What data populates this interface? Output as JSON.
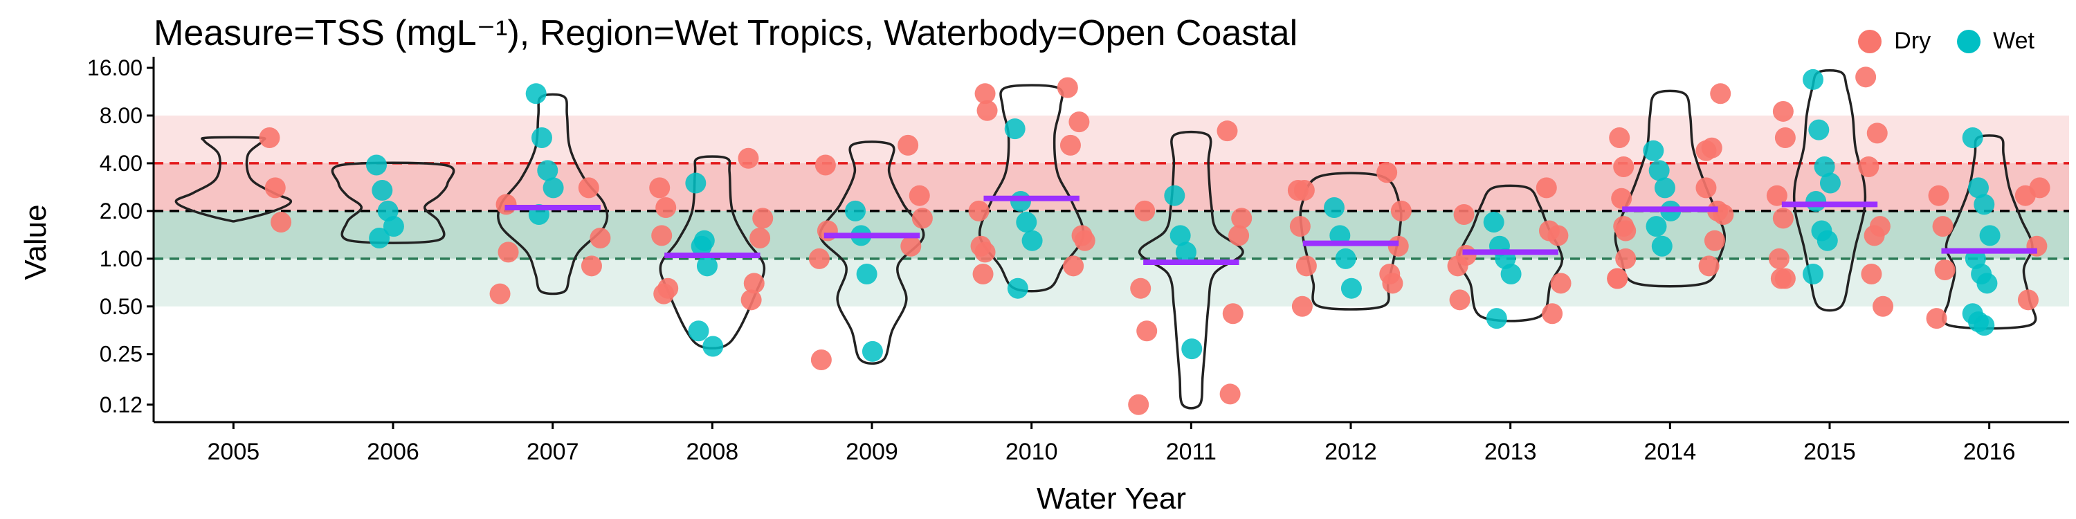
{
  "chart_data": {
    "type": "violin",
    "title": "Measure=TSS (mgL⁻¹), Region=Wet Tropics, Waterbody=Open Coastal",
    "xlabel": "Water Year",
    "ylabel": "Value",
    "y_scale": "log",
    "ylim": [
      0.095,
      17
    ],
    "y_ticks": [
      0.12,
      0.25,
      0.5,
      1.0,
      2.0,
      4.0,
      8.0,
      16.0
    ],
    "y_tick_labels": [
      "0.12",
      "0.25",
      "0.50",
      "1.00",
      "2.00",
      "4.00",
      "8.00",
      "16.00"
    ],
    "categories": [
      "2005",
      "2006",
      "2007",
      "2008",
      "2009",
      "2010",
      "2011",
      "2012",
      "2013",
      "2014",
      "2015",
      "2016"
    ],
    "bands": [
      {
        "from": 4.0,
        "to": 8.0,
        "color": "#fbe3e3"
      },
      {
        "from": 2.0,
        "to": 4.0,
        "color": "#f7c4c4"
      },
      {
        "from": 1.0,
        "to": 2.0,
        "color": "#bcdccf"
      },
      {
        "from": 0.5,
        "to": 1.0,
        "color": "#e3f1ec"
      }
    ],
    "reference_lines": [
      {
        "value": 4.0,
        "color": "#e41a1c",
        "style": "dashed"
      },
      {
        "value": 2.0,
        "color": "#000000",
        "style": "dashed"
      },
      {
        "value": 1.0,
        "color": "#2a7a55",
        "style": "dashed"
      }
    ],
    "legend": {
      "position": "top-right",
      "items": [
        {
          "label": "Dry",
          "color": "#f8766d"
        },
        {
          "label": "Wet",
          "color": "#00bfc4"
        }
      ]
    },
    "series": [
      {
        "year": "2005",
        "dry": [
          5.8,
          2.8,
          1.7
        ],
        "wet": [],
        "violin": [
          [
            1.75,
            0.1
          ],
          [
            2.0,
            0.7
          ],
          [
            2.3,
            1.0
          ],
          [
            2.6,
            0.7
          ],
          [
            3.2,
            0.3
          ],
          [
            4.5,
            0.25
          ],
          [
            5.5,
            0.5
          ],
          [
            5.8,
            0.45
          ]
        ],
        "median": null
      },
      {
        "year": "2006",
        "dry": [],
        "wet": [
          3.9,
          2.7,
          2.0,
          1.6,
          1.35
        ],
        "violin": [
          [
            1.3,
            0.75
          ],
          [
            1.7,
            0.8
          ],
          [
            2.1,
            0.55
          ],
          [
            2.5,
            0.8
          ],
          [
            3.0,
            0.95
          ],
          [
            3.9,
            0.9
          ]
        ],
        "median": null
      },
      {
        "year": "2007",
        "dry": [
          2.8,
          2.2,
          1.35,
          1.1,
          0.9,
          0.6
        ],
        "wet": [
          11.0,
          5.8,
          3.6,
          2.8,
          1.9
        ],
        "violin": [
          [
            0.62,
            0.2
          ],
          [
            0.8,
            0.3
          ],
          [
            1.1,
            0.45
          ],
          [
            1.6,
            0.9
          ],
          [
            2.2,
            0.9
          ],
          [
            3.2,
            0.55
          ],
          [
            5.0,
            0.3
          ],
          [
            8.0,
            0.25
          ],
          [
            10.5,
            0.2
          ]
        ],
        "median": 2.1
      },
      {
        "year": "2008",
        "dry": [
          4.3,
          2.1,
          1.35,
          0.65,
          0.55,
          2.8,
          1.8,
          1.4,
          0.7,
          0.6
        ],
        "wet": [
          3.0,
          1.2,
          0.9,
          0.28,
          0.35,
          1.3
        ],
        "violin": [
          [
            0.28,
            0.2
          ],
          [
            0.35,
            0.45
          ],
          [
            0.6,
            0.75
          ],
          [
            0.9,
            0.9
          ],
          [
            1.3,
            0.6
          ],
          [
            2.0,
            0.35
          ],
          [
            3.5,
            0.3
          ],
          [
            4.3,
            0.25
          ]
        ],
        "median": 1.05
      },
      {
        "year": "2009",
        "dry": [
          5.2,
          3.9,
          2.5,
          1.5,
          1.2,
          1.0,
          1.8,
          0.23
        ],
        "wet": [
          2.0,
          1.4,
          0.8,
          0.26
        ],
        "violin": [
          [
            0.23,
            0.2
          ],
          [
            0.35,
            0.35
          ],
          [
            0.55,
            0.6
          ],
          [
            0.9,
            0.45
          ],
          [
            1.4,
            0.9
          ],
          [
            2.2,
            0.55
          ],
          [
            3.5,
            0.3
          ],
          [
            5.2,
            0.35
          ]
        ],
        "median": 1.4
      },
      {
        "year": "2010",
        "dry": [
          12.0,
          11.0,
          7.3,
          8.6,
          5.2,
          2.0,
          1.4,
          1.2,
          0.9,
          0.8,
          1.3,
          1.1
        ],
        "wet": [
          6.6,
          2.3,
          1.7,
          1.3,
          0.65
        ],
        "violin": [
          [
            0.65,
            0.3
          ],
          [
            0.9,
            0.55
          ],
          [
            1.4,
            0.9
          ],
          [
            2.3,
            0.7
          ],
          [
            3.5,
            0.45
          ],
          [
            6.0,
            0.4
          ],
          [
            9.0,
            0.5
          ],
          [
            12.0,
            0.45
          ]
        ],
        "median": 2.4
      },
      {
        "year": "2011",
        "dry": [
          6.4,
          2.0,
          1.4,
          0.35,
          0.14,
          0.12,
          1.8,
          0.65,
          0.45
        ],
        "wet": [
          2.5,
          1.4,
          1.1,
          0.27
        ],
        "violin": [
          [
            0.12,
            0.15
          ],
          [
            0.18,
            0.2
          ],
          [
            0.3,
            0.25
          ],
          [
            0.5,
            0.3
          ],
          [
            0.8,
            0.4
          ],
          [
            1.1,
            0.9
          ],
          [
            1.5,
            0.45
          ],
          [
            2.2,
            0.35
          ],
          [
            4.0,
            0.3
          ],
          [
            6.0,
            0.3
          ]
        ],
        "median": 0.95
      },
      {
        "year": "2012",
        "dry": [
          3.5,
          2.7,
          1.2,
          0.9,
          0.8,
          2.7,
          2.0,
          1.6,
          0.7,
          0.5
        ],
        "wet": [
          2.1,
          1.4,
          1.0,
          0.65
        ],
        "violin": [
          [
            0.5,
            0.55
          ],
          [
            0.7,
            0.65
          ],
          [
            1.0,
            0.75
          ],
          [
            1.5,
            0.85
          ],
          [
            2.2,
            0.85
          ],
          [
            3.3,
            0.55
          ]
        ],
        "median": 1.25
      },
      {
        "year": "2013",
        "dry": [
          2.8,
          1.9,
          1.4,
          1.05,
          1.5,
          0.9,
          0.7,
          0.55,
          0.45
        ],
        "wet": [
          1.7,
          1.2,
          1.0,
          0.8,
          0.42
        ],
        "violin": [
          [
            0.43,
            0.5
          ],
          [
            0.7,
            0.7
          ],
          [
            1.0,
            0.9
          ],
          [
            1.6,
            0.65
          ],
          [
            2.2,
            0.5
          ],
          [
            2.8,
            0.3
          ]
        ],
        "median": 1.1
      },
      {
        "year": "2014",
        "dry": [
          4.8,
          3.8,
          2.0,
          1.5,
          0.9,
          0.75,
          11.0,
          5.8,
          5.0,
          2.4,
          1.9,
          1.6,
          1.3,
          1.0,
          2.8,
          0.75
        ],
        "wet": [
          4.8,
          3.6,
          2.8,
          2.0,
          1.6,
          1.2
        ],
        "violin": [
          [
            0.7,
            0.6
          ],
          [
            1.0,
            0.85
          ],
          [
            1.4,
            0.95
          ],
          [
            2.0,
            0.8
          ],
          [
            3.0,
            0.6
          ],
          [
            5.0,
            0.4
          ],
          [
            8.0,
            0.35
          ],
          [
            11.0,
            0.25
          ]
        ],
        "median": 2.05
      },
      {
        "year": "2015",
        "dry": [
          14.0,
          8.5,
          6.2,
          5.8,
          3.8,
          2.5,
          1.6,
          1.0,
          0.8,
          0.75,
          0.5,
          1.8,
          1.4,
          0.75
        ],
        "wet": [
          13.5,
          6.5,
          3.8,
          3.0,
          2.3,
          1.5,
          1.3,
          0.8
        ],
        "violin": [
          [
            0.5,
            0.2
          ],
          [
            0.8,
            0.35
          ],
          [
            1.2,
            0.45
          ],
          [
            2.0,
            0.6
          ],
          [
            3.0,
            0.6
          ],
          [
            5.0,
            0.45
          ],
          [
            8.0,
            0.4
          ],
          [
            12.0,
            0.3
          ],
          [
            15.0,
            0.2
          ]
        ],
        "median": 2.2
      },
      {
        "year": "2016",
        "dry": [
          2.5,
          1.6,
          1.2,
          0.85,
          0.55,
          0.42,
          2.8,
          2.5
        ],
        "wet": [
          5.8,
          2.8,
          2.2,
          1.4,
          1.0,
          0.8,
          0.7,
          0.45,
          0.4,
          0.38
        ],
        "violin": [
          [
            0.38,
            0.7
          ],
          [
            0.55,
            0.7
          ],
          [
            0.85,
            0.6
          ],
          [
            1.2,
            0.75
          ],
          [
            1.8,
            0.55
          ],
          [
            2.8,
            0.35
          ],
          [
            4.5,
            0.25
          ],
          [
            5.8,
            0.2
          ]
        ],
        "median": 1.12
      }
    ]
  }
}
